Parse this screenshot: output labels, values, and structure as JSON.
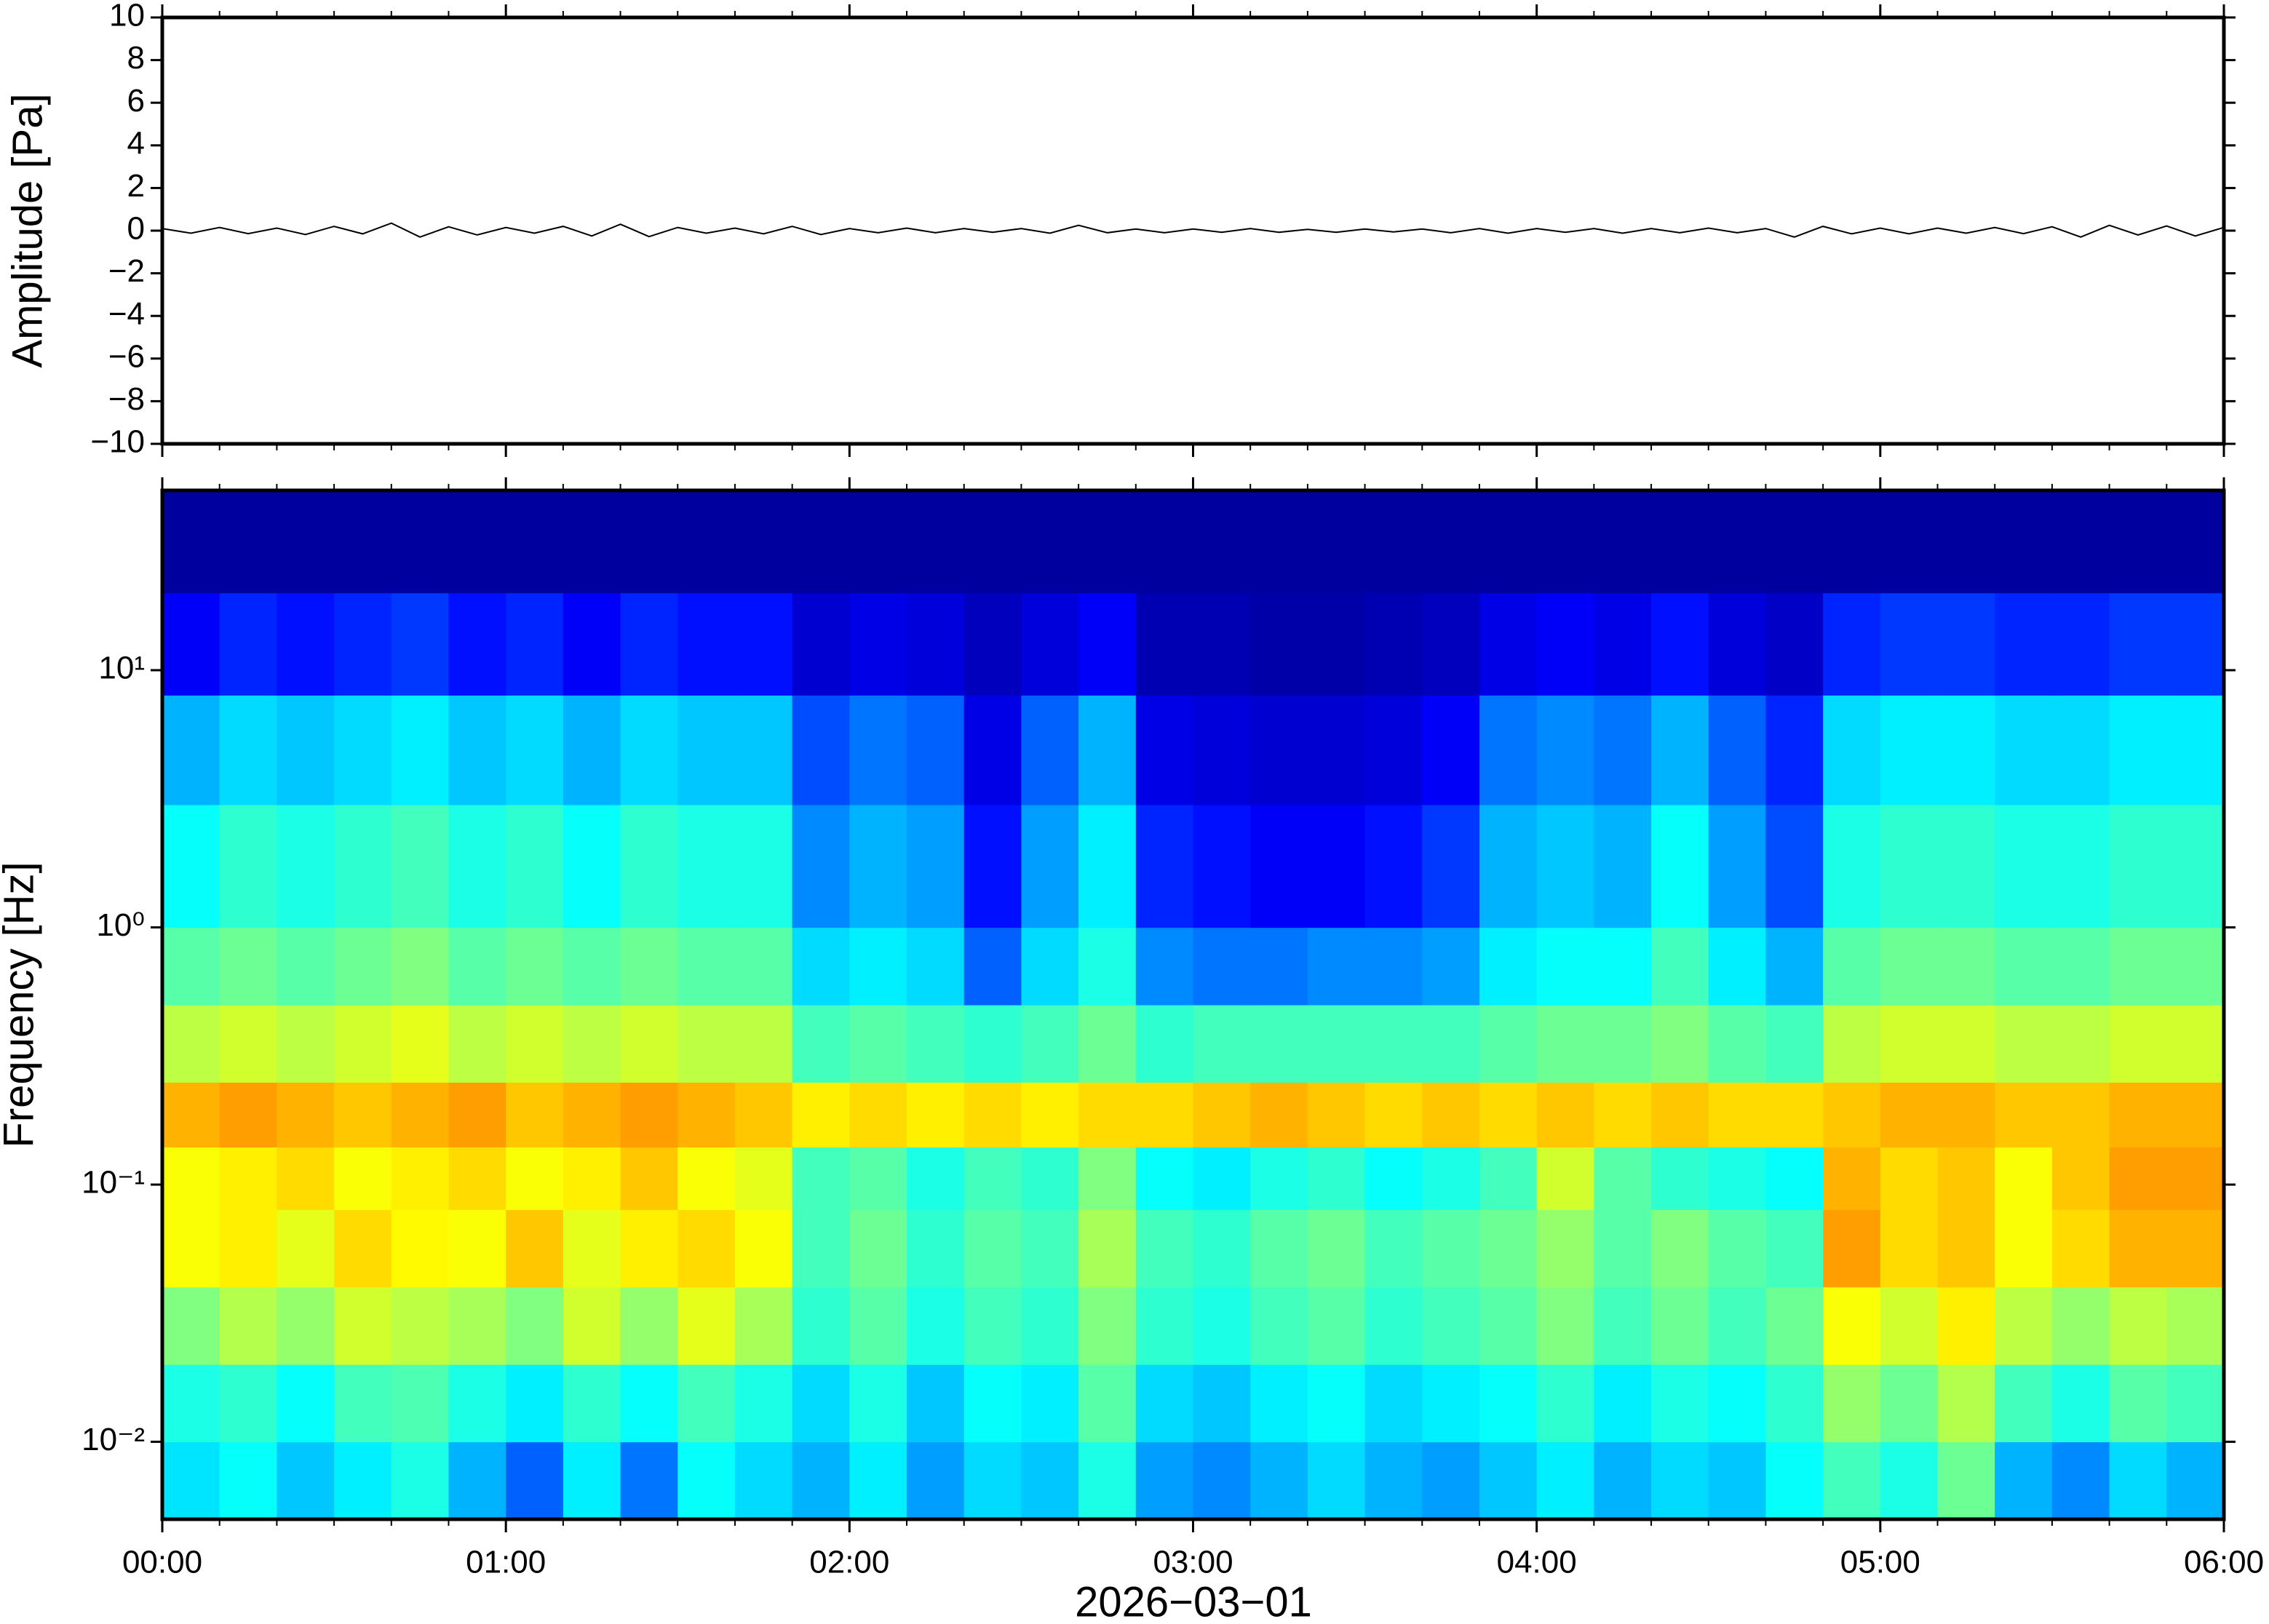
{
  "chart_data": [
    {
      "type": "line",
      "ylabel": "Amplitude [Pa]",
      "xlim": [
        0,
        360
      ],
      "ylim": [
        -10,
        10
      ],
      "yticks": [
        {
          "value": -10,
          "label": "−10"
        },
        {
          "value": -8,
          "label": "−8"
        },
        {
          "value": -6,
          "label": "−6"
        },
        {
          "value": -4,
          "label": "−4"
        },
        {
          "value": -2,
          "label": "−2"
        },
        0,
        2,
        4,
        6,
        8,
        10
      ],
      "series": [
        {
          "color": "#000000",
          "x": [
            0,
            5,
            10,
            15,
            20,
            25,
            30,
            35,
            40,
            45,
            50,
            55,
            60,
            65,
            70,
            75,
            80,
            85,
            90,
            95,
            100,
            105,
            110,
            115,
            120,
            125,
            130,
            135,
            140,
            145,
            150,
            155,
            160,
            165,
            170,
            175,
            180,
            185,
            190,
            195,
            200,
            205,
            210,
            215,
            220,
            225,
            230,
            235,
            240,
            245,
            250,
            255,
            260,
            265,
            270,
            275,
            280,
            285,
            290,
            295,
            300,
            305,
            310,
            315,
            320,
            325,
            330,
            335,
            340,
            345,
            350,
            355,
            360
          ],
          "values": [
            0.1,
            -0.12,
            0.15,
            -0.14,
            0.12,
            -0.18,
            0.2,
            -0.15,
            0.35,
            -0.3,
            0.18,
            -0.2,
            0.15,
            -0.12,
            0.2,
            -0.25,
            0.3,
            -0.28,
            0.15,
            -0.12,
            0.12,
            -0.15,
            0.2,
            -0.18,
            0.1,
            -0.1,
            0.12,
            -0.1,
            0.1,
            -0.08,
            0.1,
            -0.12,
            0.25,
            -0.1,
            0.08,
            -0.1,
            0.08,
            -0.08,
            0.1,
            -0.08,
            0.06,
            -0.08,
            0.08,
            -0.06,
            0.08,
            -0.1,
            0.1,
            -0.12,
            0.1,
            -0.08,
            0.1,
            -0.12,
            0.1,
            -0.1,
            0.12,
            -0.1,
            0.1,
            -0.3,
            0.2,
            -0.15,
            0.12,
            -0.15,
            0.12,
            -0.12,
            0.15,
            -0.14,
            0.18,
            -0.3,
            0.25,
            -0.2,
            0.22,
            -0.25,
            0.15
          ]
        }
      ]
    },
    {
      "type": "heatmap",
      "ylabel": "Frequency [Hz]",
      "xlabel": "2026−03−01",
      "xlim": [
        0,
        360
      ],
      "ylim": [
        0.005,
        50
      ],
      "ylog": true,
      "colormap": "jet",
      "zlim": [
        0,
        1
      ],
      "xticks": [
        {
          "value": 0,
          "label": "00:00"
        },
        {
          "value": 60,
          "label": "01:00"
        },
        {
          "value": 120,
          "label": "02:00"
        },
        {
          "value": 180,
          "label": "03:00"
        },
        {
          "value": 240,
          "label": "04:00"
        },
        {
          "value": 300,
          "label": "05:00"
        },
        {
          "value": 360,
          "label": "06:00"
        }
      ],
      "xminorticks": [
        10,
        20,
        30,
        40,
        50,
        70,
        80,
        90,
        100,
        110,
        130,
        140,
        150,
        160,
        170,
        190,
        200,
        210,
        220,
        230,
        250,
        260,
        270,
        280,
        290,
        310,
        320,
        330,
        340,
        350
      ],
      "yticks": [
        {
          "value": 0.01,
          "label": "10⁻²"
        },
        {
          "value": 0.1,
          "label": "10⁻¹"
        },
        {
          "value": 1,
          "label": "10⁰"
        },
        {
          "value": 10,
          "label": "10¹"
        }
      ],
      "x_bins": [
        0,
        10,
        20,
        30,
        40,
        50,
        60,
        70,
        80,
        90,
        100,
        110,
        120,
        130,
        140,
        150,
        160,
        170,
        180,
        190,
        200,
        210,
        220,
        230,
        240,
        250,
        260,
        270,
        280,
        290,
        300,
        310,
        320,
        330,
        340,
        350,
        360
      ],
      "y_bins": [
        0.005,
        0.01,
        0.02,
        0.04,
        0.08,
        0.14,
        0.25,
        0.5,
        1,
        3,
        8,
        20,
        50
      ],
      "z": [
        [
          0.35,
          0.38,
          0.32,
          0.36,
          0.4,
          0.3,
          0.22,
          0.36,
          0.24,
          0.38,
          0.34,
          0.3,
          0.36,
          0.28,
          0.34,
          0.32,
          0.4,
          0.28,
          0.26,
          0.3,
          0.34,
          0.3,
          0.28,
          0.32,
          0.36,
          0.3,
          0.34,
          0.32,
          0.38,
          0.44,
          0.4,
          0.48,
          0.3,
          0.26,
          0.34,
          0.3
        ],
        [
          0.4,
          0.42,
          0.38,
          0.44,
          0.45,
          0.4,
          0.36,
          0.42,
          0.38,
          0.44,
          0.4,
          0.34,
          0.4,
          0.32,
          0.38,
          0.36,
          0.46,
          0.34,
          0.32,
          0.36,
          0.38,
          0.34,
          0.36,
          0.38,
          0.42,
          0.36,
          0.4,
          0.38,
          0.42,
          0.52,
          0.48,
          0.55,
          0.44,
          0.4,
          0.46,
          0.44
        ],
        [
          0.5,
          0.55,
          0.52,
          0.58,
          0.56,
          0.54,
          0.5,
          0.58,
          0.52,
          0.6,
          0.54,
          0.42,
          0.46,
          0.4,
          0.44,
          0.42,
          0.5,
          0.42,
          0.4,
          0.44,
          0.46,
          0.42,
          0.44,
          0.46,
          0.5,
          0.44,
          0.48,
          0.44,
          0.48,
          0.62,
          0.58,
          0.64,
          0.56,
          0.52,
          0.56,
          0.54
        ],
        [
          0.62,
          0.64,
          0.6,
          0.66,
          0.63,
          0.62,
          0.68,
          0.6,
          0.64,
          0.66,
          0.62,
          0.44,
          0.48,
          0.42,
          0.46,
          0.44,
          0.54,
          0.44,
          0.42,
          0.46,
          0.48,
          0.44,
          0.46,
          0.48,
          0.52,
          0.46,
          0.5,
          0.46,
          0.44,
          0.72,
          0.66,
          0.68,
          0.62,
          0.66,
          0.7,
          0.7
        ],
        [
          0.62,
          0.64,
          0.66,
          0.62,
          0.64,
          0.66,
          0.62,
          0.64,
          0.68,
          0.62,
          0.6,
          0.44,
          0.46,
          0.4,
          0.44,
          0.42,
          0.5,
          0.38,
          0.36,
          0.4,
          0.42,
          0.38,
          0.4,
          0.44,
          0.58,
          0.46,
          0.42,
          0.4,
          0.38,
          0.7,
          0.66,
          0.68,
          0.62,
          0.68,
          0.72,
          0.72
        ],
        [
          0.7,
          0.72,
          0.7,
          0.68,
          0.7,
          0.72,
          0.68,
          0.7,
          0.72,
          0.7,
          0.68,
          0.64,
          0.66,
          0.64,
          0.66,
          0.64,
          0.66,
          0.66,
          0.68,
          0.7,
          0.68,
          0.66,
          0.68,
          0.66,
          0.68,
          0.66,
          0.68,
          0.66,
          0.66,
          0.68,
          0.7,
          0.7,
          0.68,
          0.68,
          0.7,
          0.7
        ],
        [
          0.56,
          0.58,
          0.56,
          0.58,
          0.6,
          0.56,
          0.58,
          0.56,
          0.58,
          0.56,
          0.56,
          0.44,
          0.46,
          0.44,
          0.42,
          0.44,
          0.48,
          0.42,
          0.44,
          0.44,
          0.44,
          0.44,
          0.44,
          0.46,
          0.48,
          0.48,
          0.5,
          0.46,
          0.44,
          0.56,
          0.58,
          0.58,
          0.56,
          0.56,
          0.58,
          0.58
        ],
        [
          0.46,
          0.48,
          0.46,
          0.48,
          0.5,
          0.46,
          0.48,
          0.46,
          0.48,
          0.46,
          0.46,
          0.34,
          0.36,
          0.34,
          0.22,
          0.34,
          0.4,
          0.26,
          0.24,
          0.24,
          0.26,
          0.26,
          0.28,
          0.36,
          0.38,
          0.38,
          0.44,
          0.36,
          0.3,
          0.46,
          0.48,
          0.48,
          0.46,
          0.46,
          0.48,
          0.48
        ],
        [
          0.38,
          0.42,
          0.4,
          0.42,
          0.44,
          0.4,
          0.42,
          0.38,
          0.42,
          0.4,
          0.4,
          0.26,
          0.3,
          0.28,
          0.14,
          0.28,
          0.36,
          0.16,
          0.14,
          0.12,
          0.12,
          0.14,
          0.18,
          0.3,
          0.32,
          0.3,
          0.38,
          0.28,
          0.2,
          0.4,
          0.42,
          0.42,
          0.4,
          0.4,
          0.42,
          0.42
        ],
        [
          0.3,
          0.34,
          0.32,
          0.34,
          0.36,
          0.32,
          0.34,
          0.3,
          0.34,
          0.32,
          0.32,
          0.2,
          0.24,
          0.22,
          0.1,
          0.22,
          0.3,
          0.1,
          0.09,
          0.08,
          0.08,
          0.09,
          0.12,
          0.24,
          0.26,
          0.24,
          0.3,
          0.22,
          0.16,
          0.34,
          0.36,
          0.36,
          0.34,
          0.34,
          0.36,
          0.36
        ],
        [
          0.12,
          0.16,
          0.14,
          0.16,
          0.18,
          0.14,
          0.16,
          0.12,
          0.16,
          0.14,
          0.14,
          0.08,
          0.1,
          0.09,
          0.06,
          0.09,
          0.12,
          0.05,
          0.05,
          0.04,
          0.04,
          0.05,
          0.06,
          0.1,
          0.12,
          0.1,
          0.14,
          0.09,
          0.07,
          0.16,
          0.18,
          0.18,
          0.16,
          0.16,
          0.18,
          0.18
        ],
        [
          0.03,
          0.03,
          0.03,
          0.03,
          0.03,
          0.03,
          0.03,
          0.03,
          0.03,
          0.03,
          0.03,
          0.03,
          0.03,
          0.03,
          0.03,
          0.03,
          0.03,
          0.03,
          0.03,
          0.03,
          0.03,
          0.03,
          0.03,
          0.03,
          0.03,
          0.03,
          0.03,
          0.03,
          0.03,
          0.03,
          0.03,
          0.03,
          0.03,
          0.03,
          0.03,
          0.03
        ]
      ]
    }
  ]
}
